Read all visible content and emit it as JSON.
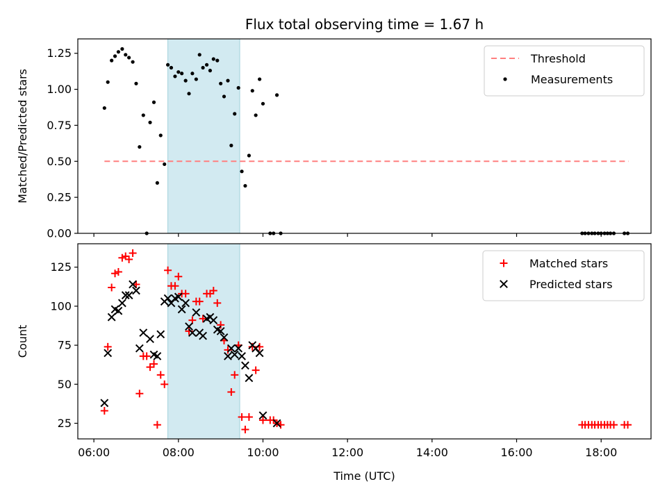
{
  "chart_data": {
    "type": "scatter",
    "title": "Flux total observing time = 1.67 h",
    "xlabel": "Time (UTC)",
    "xlim_hours": [
      5.62,
      19.18
    ],
    "x_ticks": [
      {
        "hour": 6,
        "label": "06:00"
      },
      {
        "hour": 8,
        "label": "08:00"
      },
      {
        "hour": 10,
        "label": "10:00"
      },
      {
        "hour": 12,
        "label": "12:00"
      },
      {
        "hour": 14,
        "label": "14:00"
      },
      {
        "hour": 16,
        "label": "16:00"
      },
      {
        "hour": 18,
        "label": "18:00"
      }
    ],
    "shaded_span_hours": [
      7.75,
      9.45
    ],
    "shaded_color": "#add8e6",
    "panels": [
      {
        "ylabel": "Matched/Predicted stars",
        "ylim": [
          0,
          1.35
        ],
        "y_ticks": [
          {
            "value": 0.0,
            "label": "0.00"
          },
          {
            "value": 0.25,
            "label": "0.25"
          },
          {
            "value": 0.5,
            "label": "0.50"
          },
          {
            "value": 0.75,
            "label": "0.75"
          },
          {
            "value": 1.0,
            "label": "1.00"
          },
          {
            "value": 1.25,
            "label": "1.25"
          }
        ],
        "legend_position": "top-right",
        "threshold": {
          "name": "Threshold",
          "value": 0.5,
          "x_range_hours": [
            6.25,
            18.65
          ],
          "color": "#ff7f7f"
        },
        "series": [
          {
            "name": "Measurements",
            "marker": "dot",
            "color": "#000000",
            "points": [
              [
                6.25,
                0.87
              ],
              [
                6.33,
                1.05
              ],
              [
                6.42,
                1.2
              ],
              [
                6.5,
                1.23
              ],
              [
                6.58,
                1.26
              ],
              [
                6.67,
                1.28
              ],
              [
                6.75,
                1.24
              ],
              [
                6.83,
                1.22
              ],
              [
                6.92,
                1.19
              ],
              [
                7.0,
                1.04
              ],
              [
                7.08,
                0.6
              ],
              [
                7.17,
                0.82
              ],
              [
                7.25,
                0.0
              ],
              [
                7.33,
                0.77
              ],
              [
                7.42,
                0.91
              ],
              [
                7.5,
                0.35
              ],
              [
                7.58,
                0.68
              ],
              [
                7.67,
                0.48
              ],
              [
                7.75,
                1.17
              ],
              [
                7.83,
                1.15
              ],
              [
                7.92,
                1.09
              ],
              [
                8.0,
                1.12
              ],
              [
                8.08,
                1.11
              ],
              [
                8.17,
                1.06
              ],
              [
                8.25,
                0.97
              ],
              [
                8.33,
                1.11
              ],
              [
                8.42,
                1.07
              ],
              [
                8.5,
                1.24
              ],
              [
                8.58,
                1.15
              ],
              [
                8.67,
                1.17
              ],
              [
                8.75,
                1.13
              ],
              [
                8.83,
                1.21
              ],
              [
                8.92,
                1.2
              ],
              [
                9.0,
                1.04
              ],
              [
                9.08,
                0.95
              ],
              [
                9.17,
                1.06
              ],
              [
                9.25,
                0.61
              ],
              [
                9.33,
                0.83
              ],
              [
                9.42,
                1.01
              ],
              [
                9.5,
                0.43
              ],
              [
                9.58,
                0.33
              ],
              [
                9.67,
                0.54
              ],
              [
                9.75,
                0.99
              ],
              [
                9.83,
                0.82
              ],
              [
                9.92,
                1.07
              ],
              [
                10.0,
                0.9
              ],
              [
                10.17,
                0.0
              ],
              [
                10.25,
                0.0
              ],
              [
                10.33,
                0.96
              ],
              [
                10.42,
                0.0
              ],
              [
                17.55,
                0.0
              ],
              [
                17.62,
                0.0
              ],
              [
                17.7,
                0.0
              ],
              [
                17.78,
                0.0
              ],
              [
                17.85,
                0.0
              ],
              [
                17.93,
                0.0
              ],
              [
                18.0,
                0.0
              ],
              [
                18.08,
                0.0
              ],
              [
                18.15,
                0.0
              ],
              [
                18.22,
                0.0
              ],
              [
                18.3,
                0.0
              ],
              [
                18.55,
                0.0
              ],
              [
                18.63,
                0.0
              ]
            ]
          }
        ]
      },
      {
        "ylabel": "Count",
        "ylim": [
          15,
          140
        ],
        "y_ticks": [
          {
            "value": 25,
            "label": "25"
          },
          {
            "value": 50,
            "label": "50"
          },
          {
            "value": 75,
            "label": "75"
          },
          {
            "value": 100,
            "label": "100"
          },
          {
            "value": 125,
            "label": "125"
          }
        ],
        "legend_position": "top-right",
        "series": [
          {
            "name": "Matched stars",
            "marker": "plus",
            "color": "#ff0000",
            "points": [
              [
                6.25,
                33
              ],
              [
                6.33,
                74
              ],
              [
                6.42,
                112
              ],
              [
                6.5,
                121
              ],
              [
                6.58,
                122
              ],
              [
                6.67,
                131
              ],
              [
                6.75,
                132
              ],
              [
                6.83,
                130
              ],
              [
                6.92,
                134
              ],
              [
                7.0,
                114
              ],
              [
                7.08,
                44
              ],
              [
                7.17,
                68
              ],
              [
                7.25,
                68
              ],
              [
                7.33,
                61
              ],
              [
                7.42,
                63
              ],
              [
                7.5,
                24
              ],
              [
                7.58,
                56
              ],
              [
                7.67,
                50
              ],
              [
                7.75,
                123
              ],
              [
                7.83,
                113
              ],
              [
                7.92,
                113
              ],
              [
                8.0,
                119
              ],
              [
                8.08,
                108
              ],
              [
                8.17,
                108
              ],
              [
                8.25,
                84
              ],
              [
                8.33,
                91
              ],
              [
                8.42,
                103
              ],
              [
                8.5,
                103
              ],
              [
                8.58,
                92
              ],
              [
                8.67,
                108
              ],
              [
                8.75,
                108
              ],
              [
                8.83,
                110
              ],
              [
                8.92,
                102
              ],
              [
                9.0,
                88
              ],
              [
                9.08,
                78
              ],
              [
                9.17,
                72
              ],
              [
                9.25,
                45
              ],
              [
                9.33,
                56
              ],
              [
                9.42,
                75
              ],
              [
                9.5,
                29
              ],
              [
                9.58,
                21
              ],
              [
                9.67,
                29
              ],
              [
                9.75,
                74
              ],
              [
                9.83,
                59
              ],
              [
                9.92,
                74
              ],
              [
                10.0,
                27
              ],
              [
                10.17,
                27
              ],
              [
                10.25,
                27
              ],
              [
                10.33,
                25
              ],
              [
                10.42,
                24
              ],
              [
                17.55,
                24
              ],
              [
                17.62,
                24
              ],
              [
                17.7,
                24
              ],
              [
                17.78,
                24
              ],
              [
                17.85,
                24
              ],
              [
                17.93,
                24
              ],
              [
                18.0,
                24
              ],
              [
                18.08,
                24
              ],
              [
                18.15,
                24
              ],
              [
                18.22,
                24
              ],
              [
                18.3,
                24
              ],
              [
                18.55,
                24
              ],
              [
                18.63,
                24
              ]
            ]
          },
          {
            "name": "Predicted stars",
            "marker": "x",
            "color": "#000000",
            "points": [
              [
                6.25,
                38
              ],
              [
                6.33,
                70
              ],
              [
                6.42,
                93
              ],
              [
                6.5,
                98
              ],
              [
                6.58,
                97
              ],
              [
                6.67,
                102
              ],
              [
                6.75,
                107
              ],
              [
                6.83,
                107
              ],
              [
                6.92,
                114
              ],
              [
                7.0,
                110
              ],
              [
                7.08,
                73
              ],
              [
                7.17,
                83
              ],
              [
                7.33,
                79
              ],
              [
                7.42,
                69
              ],
              [
                7.5,
                68
              ],
              [
                7.58,
                82
              ],
              [
                7.67,
                103
              ],
              [
                7.75,
                105
              ],
              [
                7.83,
                102
              ],
              [
                7.92,
                105
              ],
              [
                8.0,
                106
              ],
              [
                8.08,
                98
              ],
              [
                8.17,
                102
              ],
              [
                8.25,
                87
              ],
              [
                8.33,
                83
              ],
              [
                8.42,
                96
              ],
              [
                8.5,
                83
              ],
              [
                8.58,
                81
              ],
              [
                8.67,
                92
              ],
              [
                8.75,
                93
              ],
              [
                8.83,
                91
              ],
              [
                8.92,
                85
              ],
              [
                9.0,
                84
              ],
              [
                9.08,
                80
              ],
              [
                9.17,
                68
              ],
              [
                9.25,
                73
              ],
              [
                9.33,
                69
              ],
              [
                9.42,
                73
              ],
              [
                9.5,
                68
              ],
              [
                9.58,
                62
              ],
              [
                9.67,
                54
              ],
              [
                9.75,
                75
              ],
              [
                9.83,
                73
              ],
              [
                9.92,
                70
              ],
              [
                10.0,
                30
              ],
              [
                10.33,
                25
              ]
            ]
          }
        ]
      }
    ]
  }
}
